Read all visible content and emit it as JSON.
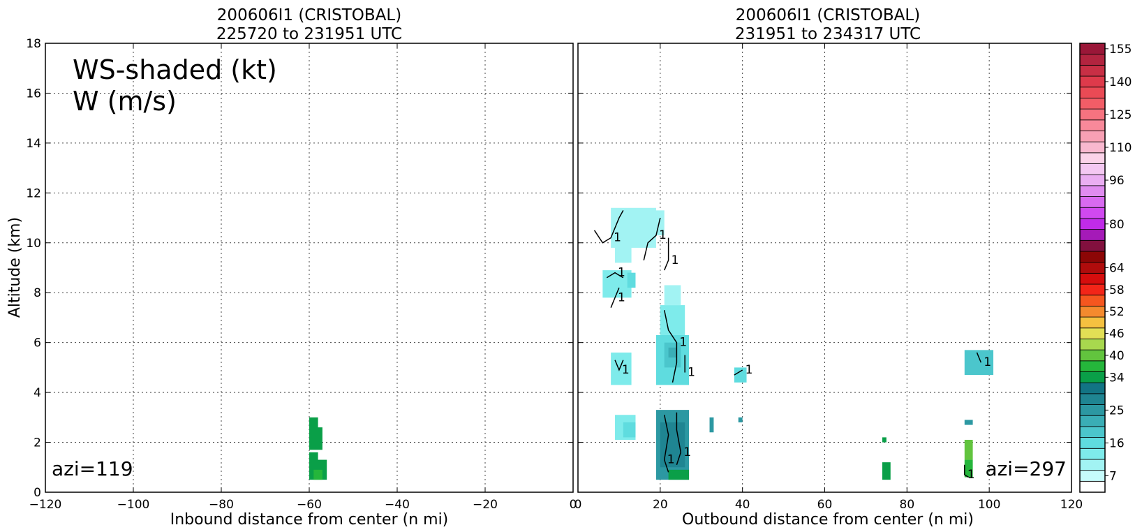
{
  "chart_data": [
    {
      "type": "heatmap",
      "title": "200606I1 (CRISTOBAL)",
      "subtitle": "225720 to 231951 UTC",
      "xlabel": "Inbound distance from center (n mi)",
      "ylabel": "Altitude (km)",
      "xlim": [
        -120,
        0
      ],
      "ylim": [
        0,
        18
      ],
      "grid": true,
      "x_ticks": [
        "−120",
        "−100",
        "−80",
        "−60",
        "−40",
        "−20",
        "0"
      ],
      "y_ticks": [
        "0",
        "2",
        "4",
        "6",
        "8",
        "10",
        "12",
        "14",
        "16",
        "18"
      ],
      "annotations": [
        "WS-shaded (kt)",
        "W (m/s)",
        "azi=119"
      ],
      "ws_cells_kt": [
        {
          "x": [
            -60,
            -58
          ],
          "y": [
            2.0,
            3.0
          ],
          "ws": 34
        },
        {
          "x": [
            -60,
            -57
          ],
          "y": [
            1.7,
            2.6
          ],
          "ws": 34
        },
        {
          "x": [
            -60,
            -58
          ],
          "y": [
            1.0,
            1.6
          ],
          "ws": 34
        },
        {
          "x": [
            -60,
            -56
          ],
          "y": [
            0.5,
            1.3
          ],
          "ws": 34
        },
        {
          "x": [
            -59,
            -57
          ],
          "y": [
            0.5,
            0.9
          ],
          "ws": 37
        }
      ],
      "w_contours": []
    },
    {
      "type": "heatmap",
      "title": "200606I1 (CRISTOBAL)",
      "subtitle": "231951 to 234317 UTC",
      "xlabel": "Outbound distance from center (n mi)",
      "xlim": [
        0,
        120
      ],
      "ylim": [
        0,
        18
      ],
      "grid": true,
      "x_ticks": [
        "0",
        "20",
        "40",
        "60",
        "80",
        "100",
        "120"
      ],
      "annotations": [
        "azi=297"
      ],
      "ws_cells_kt": [
        {
          "x": [
            8,
            19
          ],
          "y": [
            9.8,
            11.4
          ],
          "ws": 10
        },
        {
          "x": [
            9,
            13
          ],
          "y": [
            9.2,
            10.2
          ],
          "ws": 10
        },
        {
          "x": [
            15,
            21
          ],
          "y": [
            10.3,
            11.3
          ],
          "ws": 10
        },
        {
          "x": [
            6,
            13
          ],
          "y": [
            7.8,
            8.9
          ],
          "ws": 13
        },
        {
          "x": [
            12,
            14
          ],
          "y": [
            8.2,
            8.8
          ],
          "ws": 16
        },
        {
          "x": [
            21,
            25
          ],
          "y": [
            7.5,
            8.3
          ],
          "ws": 10
        },
        {
          "x": [
            20,
            26
          ],
          "y": [
            6.3,
            7.5
          ],
          "ws": 13
        },
        {
          "x": [
            19,
            27
          ],
          "y": [
            4.3,
            6.3
          ],
          "ws": 16
        },
        {
          "x": [
            21,
            25
          ],
          "y": [
            5.0,
            6.0
          ],
          "ws": 19
        },
        {
          "x": [
            22,
            24
          ],
          "y": [
            5.4,
            5.8
          ],
          "ws": 22
        },
        {
          "x": [
            8,
            13
          ],
          "y": [
            4.3,
            5.6
          ],
          "ws": 13
        },
        {
          "x": [
            38,
            41
          ],
          "y": [
            4.4,
            5.0
          ],
          "ws": 16
        },
        {
          "x": [
            94,
            101
          ],
          "y": [
            4.7,
            5.7
          ],
          "ws": 19
        },
        {
          "x": [
            9,
            14
          ],
          "y": [
            2.1,
            3.1
          ],
          "ws": 13
        },
        {
          "x": [
            11,
            14
          ],
          "y": [
            2.2,
            2.8
          ],
          "ws": 16
        },
        {
          "x": [
            19,
            27
          ],
          "y": [
            0.5,
            3.3
          ],
          "ws": 25
        },
        {
          "x": [
            20,
            26
          ],
          "y": [
            1.0,
            2.8
          ],
          "ws": 28
        },
        {
          "x": [
            32,
            33
          ],
          "y": [
            2.4,
            3.0
          ],
          "ws": 25
        },
        {
          "x": [
            39,
            40
          ],
          "y": [
            2.8,
            3.0
          ],
          "ws": 25
        },
        {
          "x": [
            94,
            96
          ],
          "y": [
            2.7,
            2.9
          ],
          "ws": 25
        },
        {
          "x": [
            74,
            75
          ],
          "y": [
            2.0,
            2.2
          ],
          "ws": 34
        },
        {
          "x": [
            74,
            76
          ],
          "y": [
            0.5,
            1.2
          ],
          "ws": 34
        },
        {
          "x": [
            94,
            96
          ],
          "y": [
            0.6,
            1.3
          ],
          "ws": 37
        },
        {
          "x": [
            94,
            96
          ],
          "y": [
            1.3,
            2.1
          ],
          "ws": 40
        },
        {
          "x": [
            22,
            27
          ],
          "y": [
            0.5,
            0.9
          ],
          "ws": 34
        }
      ],
      "w_contours": [
        {
          "label": "1",
          "points": [
            [
              4,
              10.5
            ],
            [
              6,
              10.0
            ],
            [
              8,
              10.2
            ],
            [
              10,
              11.0
            ],
            [
              11,
              11.3
            ]
          ]
        },
        {
          "label": "1",
          "points": [
            [
              16,
              9.3
            ],
            [
              17,
              10.0
            ],
            [
              19,
              10.3
            ],
            [
              20,
              11.0
            ]
          ]
        },
        {
          "label": "1",
          "points": [
            [
              21,
              8.9
            ],
            [
              22,
              9.3
            ],
            [
              22,
              10.2
            ]
          ]
        },
        {
          "label": "1",
          "points": [
            [
              7,
              8.6
            ],
            [
              9,
              8.8
            ],
            [
              11,
              8.6
            ]
          ]
        },
        {
          "label": "1",
          "points": [
            [
              8,
              7.4
            ],
            [
              9,
              7.8
            ],
            [
              10,
              8.2
            ]
          ]
        },
        {
          "label": "1",
          "points": [
            [
              21,
              7.3
            ],
            [
              22,
              6.5
            ],
            [
              24,
              6.0
            ],
            [
              24,
              5.2
            ],
            [
              23,
              4.4
            ]
          ]
        },
        {
          "label": "1",
          "points": [
            [
              26,
              5.5
            ],
            [
              26,
              4.8
            ]
          ]
        },
        {
          "label": "1",
          "points": [
            [
              9,
              5.3
            ],
            [
              10,
              4.9
            ],
            [
              11,
              5.3
            ]
          ]
        },
        {
          "label": "1",
          "points": [
            [
              38,
              4.7
            ],
            [
              40,
              4.9
            ]
          ]
        },
        {
          "label": "1",
          "points": [
            [
              97,
              5.6
            ],
            [
              98,
              5.2
            ]
          ]
        },
        {
          "label": "1",
          "points": [
            [
              21,
              3.1
            ],
            [
              22,
              2.3
            ],
            [
              21,
              1.3
            ],
            [
              22,
              0.8
            ]
          ]
        },
        {
          "label": "1",
          "points": [
            [
              24,
              3.2
            ],
            [
              24,
              2.5
            ],
            [
              25,
              1.6
            ],
            [
              24,
              1.1
            ]
          ]
        },
        {
          "label": "1",
          "points": [
            [
              94,
              1.1
            ],
            [
              94,
              0.7
            ],
            [
              95,
              0.6
            ]
          ]
        }
      ]
    }
  ],
  "colorbar": {
    "label_ticks": [
      "7",
      "16",
      "25",
      "34",
      "40",
      "46",
      "52",
      "58",
      "64",
      "80",
      "96",
      "110",
      "125",
      "140",
      "155"
    ],
    "levels": [
      {
        "min": 4,
        "color": "#ffffff"
      },
      {
        "min": 7,
        "color": "#c6fbfb"
      },
      {
        "min": 10,
        "color": "#a2f3f3"
      },
      {
        "min": 13,
        "color": "#7eebeb"
      },
      {
        "min": 16,
        "color": "#5fdcdf"
      },
      {
        "min": 19,
        "color": "#4bc6cc"
      },
      {
        "min": 22,
        "color": "#3aaeb6"
      },
      {
        "min": 25,
        "color": "#2c98a2"
      },
      {
        "min": 28,
        "color": "#1f8592"
      },
      {
        "min": 31,
        "color": "#127484"
      },
      {
        "min": 34,
        "color": "#0a9f48"
      },
      {
        "min": 37,
        "color": "#25b63b"
      },
      {
        "min": 40,
        "color": "#62c43e"
      },
      {
        "min": 43,
        "color": "#a8d84e"
      },
      {
        "min": 46,
        "color": "#e2df55"
      },
      {
        "min": 49,
        "color": "#f5c140"
      },
      {
        "min": 52,
        "color": "#f48a2e"
      },
      {
        "min": 55,
        "color": "#f5561f"
      },
      {
        "min": 58,
        "color": "#f32518"
      },
      {
        "min": 61,
        "color": "#d60d0d"
      },
      {
        "min": 64,
        "color": "#b00c0c"
      },
      {
        "min": 67,
        "color": "#8c0606"
      },
      {
        "min": 72,
        "color": "#82103e"
      },
      {
        "min": 76,
        "color": "#a51ab8"
      },
      {
        "min": 80,
        "color": "#c02be8"
      },
      {
        "min": 84,
        "color": "#d049f0"
      },
      {
        "min": 88,
        "color": "#d86af0"
      },
      {
        "min": 92,
        "color": "#e08cf0"
      },
      {
        "min": 96,
        "color": "#eaaef2"
      },
      {
        "min": 100,
        "color": "#f4c8f2"
      },
      {
        "min": 105,
        "color": "#fbd3e9"
      },
      {
        "min": 110,
        "color": "#f8b8cf"
      },
      {
        "min": 115,
        "color": "#f8a0b4"
      },
      {
        "min": 120,
        "color": "#f8899a"
      },
      {
        "min": 125,
        "color": "#f67380"
      },
      {
        "min": 130,
        "color": "#f25d67"
      },
      {
        "min": 135,
        "color": "#ea4a55"
      },
      {
        "min": 140,
        "color": "#de3a4b"
      },
      {
        "min": 145,
        "color": "#c82f45"
      },
      {
        "min": 150,
        "color": "#b2243f"
      },
      {
        "min": 155,
        "color": "#9a1738"
      }
    ]
  }
}
